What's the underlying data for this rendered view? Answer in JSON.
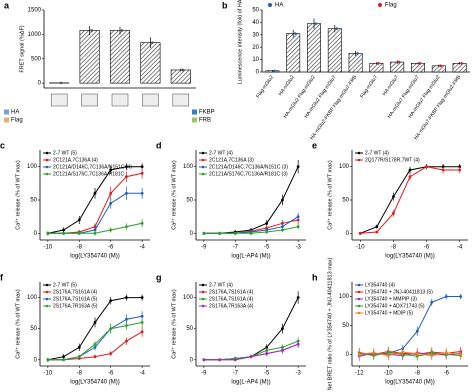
{
  "chart_data": [
    {
      "type": "bar",
      "panel": "a",
      "ylabel": "FRET signal (%ΔF)",
      "categories": [
        null,
        null,
        null,
        null,
        null
      ],
      "values": [
        5,
        1080,
        1080,
        830,
        270
      ],
      "errors": [
        10,
        90,
        80,
        110,
        30
      ],
      "color": "#555555",
      "ylim": [
        -100,
        1500
      ],
      "yticks": [
        0,
        500,
        1000,
        1500
      ],
      "legend": [
        "HA",
        "Flag",
        "FKBP",
        "FRB"
      ]
    },
    {
      "type": "bar",
      "panel": "b",
      "ylabel": "Luminescence intensity (fold of HA)",
      "categories": [
        "Flag-mGlu2",
        "HA-mGlu2",
        "HA-mGlu2 Flag-mGlu2",
        "HA-mGlu2 Flag-mGlu7",
        "HA-mGlu2-FKBP Flag-mGlu7-FRB",
        "Flag-mGlu7",
        "HA-mGlu7",
        "HA-mGlu7 Flag-mGlu7",
        "HA-mGlu7 Flag-mGlu2",
        "HA-mGlu7-FKBP Flag-mGlu2-FRB"
      ],
      "series": [
        {
          "name": "HA",
          "color": "#1f5fbf",
          "values": [
            1,
            31,
            39,
            35,
            15,
            null,
            null,
            null,
            null,
            null
          ],
          "errors": [
            0.5,
            3,
            4,
            3,
            2,
            null,
            null,
            null,
            null,
            null
          ]
        },
        {
          "name": "Flag",
          "color": "#e41a1c",
          "values": [
            null,
            null,
            null,
            null,
            null,
            7,
            8,
            7,
            5,
            7
          ],
          "errors": [
            null,
            null,
            null,
            null,
            null,
            1,
            1.5,
            1,
            1,
            1
          ]
        }
      ],
      "ylim": [
        0,
        50
      ],
      "yticks": [
        0,
        10,
        20,
        30,
        40,
        50
      ]
    },
    {
      "type": "line",
      "panel": "c",
      "xlabel": "log(LY354740 (M))",
      "ylabel": "Ca²⁺ release (% of WT max)",
      "x": [
        -10,
        -9,
        -8,
        -7,
        -6,
        -5,
        -4
      ],
      "series": [
        {
          "name": "2-7 WT (5)",
          "color": "#000000",
          "values": [
            0,
            5,
            20,
            60,
            95,
            100,
            100
          ],
          "errors": [
            3,
            4,
            6,
            8,
            6,
            5,
            5
          ]
        },
        {
          "name": "2C121A,7C136A (4)",
          "color": "#e41a1c",
          "values": [
            0,
            0,
            2,
            10,
            60,
            85,
            90
          ],
          "errors": [
            2,
            2,
            3,
            5,
            10,
            8,
            8
          ]
        },
        {
          "name": "2C121A/D146C,7C136A/N151C (4)",
          "color": "#1f5fbf",
          "values": [
            0,
            0,
            0,
            5,
            45,
            60,
            60
          ],
          "errors": [
            2,
            2,
            2,
            4,
            8,
            10,
            8
          ]
        },
        {
          "name": "2C121A/S176C,7C136A/R181C",
          "color": "#2ca02c",
          "values": [
            0,
            0,
            0,
            0,
            5,
            10,
            15
          ],
          "errors": [
            2,
            2,
            2,
            3,
            4,
            5,
            6
          ]
        }
      ],
      "xlim": [
        -10.5,
        -3.5
      ],
      "xticks": [
        -10,
        -8,
        -6,
        -4
      ],
      "ylim": [
        -10,
        125
      ],
      "yticks": [
        0,
        50,
        100
      ]
    },
    {
      "type": "line",
      "panel": "d",
      "xlabel": "log(L-AP4 (M))",
      "ylabel": "Ca²⁺ release (% of WT max)",
      "x": [
        -9,
        -8,
        -7,
        -6,
        -5,
        -4,
        -3
      ],
      "series": [
        {
          "name": "2-7 WT (4)",
          "color": "#000000",
          "values": [
            0,
            0,
            2,
            5,
            15,
            50,
            100
          ],
          "errors": [
            2,
            2,
            3,
            3,
            5,
            8,
            10
          ]
        },
        {
          "name": "2C121A,7C136A (3)",
          "color": "#e41a1c",
          "values": [
            0,
            0,
            0,
            3,
            8,
            15,
            20
          ],
          "errors": [
            2,
            2,
            2,
            3,
            4,
            5,
            6
          ]
        },
        {
          "name": "2C121A/D146C,7C136A/N151C (3)",
          "color": "#1f5fbf",
          "values": [
            0,
            0,
            0,
            2,
            5,
            10,
            25
          ],
          "errors": [
            2,
            2,
            2,
            3,
            3,
            5,
            6
          ]
        },
        {
          "name": "2C121A/S176C,7C136A/R181C (3)",
          "color": "#2ca02c",
          "values": [
            0,
            0,
            0,
            0,
            2,
            5,
            10
          ],
          "errors": [
            2,
            2,
            2,
            2,
            3,
            3,
            4
          ]
        }
      ],
      "xlim": [
        -9.5,
        -2.5
      ],
      "xticks": [
        -9,
        -7,
        -5,
        -3
      ],
      "ylim": [
        -10,
        125
      ],
      "yticks": [
        0,
        50,
        100
      ]
    },
    {
      "type": "line",
      "panel": "e",
      "xlabel": "log(LY354740 (M))",
      "ylabel": "Ca²⁺ release (% of WT max)",
      "x": [
        -10,
        -9,
        -8,
        -7,
        -6,
        -5,
        -4
      ],
      "series": [
        {
          "name": "2-7 WT (4)",
          "color": "#000000",
          "values": [
            0,
            10,
            55,
            95,
            100,
            100,
            100
          ],
          "errors": [
            2,
            3,
            6,
            5,
            4,
            4,
            4
          ]
        },
        {
          "name": "2Q177R/S178R,7WT (4)",
          "color": "#e41a1c",
          "values": [
            0,
            2,
            30,
            85,
            100,
            95,
            95
          ],
          "errors": [
            2,
            2,
            5,
            6,
            4,
            5,
            5
          ]
        }
      ],
      "xlim": [
        -10.5,
        -3.5
      ],
      "xticks": [
        -10,
        -8,
        -6,
        -4
      ],
      "ylim": [
        -10,
        125
      ],
      "yticks": [
        0,
        50,
        100
      ]
    },
    {
      "type": "line",
      "panel": "f",
      "xlabel": "log(LY354740 (M))",
      "ylabel": "Ca²⁺ release (% of WT max)",
      "x": [
        -10,
        -9,
        -8,
        -7,
        -6,
        -5,
        -4
      ],
      "series": [
        {
          "name": "2-7 WT (5)",
          "color": "#000000",
          "values": [
            0,
            5,
            20,
            60,
            95,
            100,
            100
          ],
          "errors": [
            3,
            4,
            6,
            8,
            6,
            5,
            5
          ]
        },
        {
          "name": "2S176A,7S161A (4)",
          "color": "#e41a1c",
          "values": [
            0,
            0,
            2,
            5,
            10,
            30,
            45
          ],
          "errors": [
            2,
            2,
            2,
            3,
            4,
            6,
            8
          ]
        },
        {
          "name": "2S176A,7S161A (5)",
          "color": "#1f5fbf",
          "values": [
            0,
            0,
            5,
            20,
            50,
            65,
            70
          ],
          "errors": [
            2,
            2,
            3,
            5,
            8,
            8,
            8
          ]
        },
        {
          "name": "2S176A,7R163A (5)",
          "color": "#2ca02c",
          "values": [
            0,
            0,
            5,
            25,
            50,
            55,
            60
          ],
          "errors": [
            2,
            2,
            3,
            5,
            7,
            7,
            7
          ]
        }
      ],
      "xlim": [
        -10.5,
        -3.5
      ],
      "xticks": [
        -10,
        -8,
        -6,
        -4
      ],
      "ylim": [
        -10,
        125
      ],
      "yticks": [
        0,
        50,
        100
      ]
    },
    {
      "type": "line",
      "panel": "g",
      "xlabel": "log(L-AP4 (M))",
      "ylabel": "Ca²⁺ release (% of WT max)",
      "x": [
        -9,
        -8,
        -7,
        -6,
        -5,
        -4,
        -3
      ],
      "series": [
        {
          "name": "2-7 WT (4)",
          "color": "#000000",
          "values": [
            0,
            0,
            2,
            5,
            20,
            50,
            100
          ],
          "errors": [
            2,
            2,
            3,
            3,
            5,
            8,
            10
          ]
        },
        {
          "name": "2S176A,7S161A (4)",
          "color": "#e41a1c",
          "values": [
            0,
            0,
            0,
            5,
            10,
            15,
            25
          ],
          "errors": [
            2,
            2,
            2,
            3,
            4,
            5,
            6
          ]
        },
        {
          "name": "2S176A,7S161A (4)",
          "color": "#2ca02c",
          "values": [
            0,
            0,
            2,
            5,
            15,
            20,
            30
          ],
          "errors": [
            2,
            2,
            2,
            3,
            4,
            5,
            6
          ]
        },
        {
          "name": "2S176A,7R163A (4)",
          "color": "#9b30c0",
          "values": [
            0,
            0,
            0,
            5,
            10,
            15,
            25
          ],
          "errors": [
            2,
            2,
            2,
            3,
            4,
            5,
            6
          ]
        }
      ],
      "xlim": [
        -9.5,
        -2.5
      ],
      "xticks": [
        -9,
        -7,
        -5,
        -3
      ],
      "ylim": [
        -10,
        125
      ],
      "yticks": [
        0,
        50,
        100
      ]
    },
    {
      "type": "line",
      "panel": "h",
      "xlabel": "log(LY354740 (M))",
      "ylabel": "Net BRET ratio (% of LY354740 + JNJ-40411813 max)",
      "x": [
        -12,
        -11,
        -10,
        -9,
        -8,
        -7,
        -6,
        -5
      ],
      "series": [
        {
          "name": "LY354740 (4)",
          "color": "#1f5fbf",
          "values": [
            0,
            0,
            2,
            10,
            40,
            90,
            100,
            100
          ],
          "errors": [
            5,
            5,
            5,
            6,
            8,
            6,
            5,
            5
          ]
        },
        {
          "name": "LY354740 + JNJ-40411813 (5)",
          "color": "#e41a1c",
          "values": [
            3,
            0,
            5,
            2,
            0,
            4,
            2,
            5
          ],
          "errors": [
            8,
            8,
            8,
            8,
            8,
            8,
            8,
            8
          ]
        },
        {
          "name": "LY354740 + MMPIP (3)",
          "color": "#9b30c0",
          "values": [
            -3,
            2,
            0,
            -2,
            3,
            0,
            -1,
            2
          ],
          "errors": [
            8,
            8,
            8,
            8,
            8,
            8,
            8,
            8
          ]
        },
        {
          "name": "LY354740 + ADX71743 (5)",
          "color": "#2ca02c",
          "values": [
            2,
            -2,
            3,
            0,
            -3,
            2,
            0,
            -2
          ],
          "errors": [
            8,
            8,
            8,
            8,
            8,
            8,
            8,
            8
          ]
        },
        {
          "name": "LY354740 + MDIP (5)",
          "color": "#f08020",
          "values": [
            0,
            3,
            -2,
            4,
            1,
            -2,
            3,
            0
          ],
          "errors": [
            8,
            8,
            8,
            8,
            8,
            8,
            8,
            8
          ]
        }
      ],
      "xlim": [
        -12.5,
        -4.5
      ],
      "xticks": [
        -12,
        -10,
        -8,
        -6
      ],
      "ylim": [
        -20,
        125
      ],
      "yticks": [
        0,
        50,
        100
      ]
    }
  ]
}
